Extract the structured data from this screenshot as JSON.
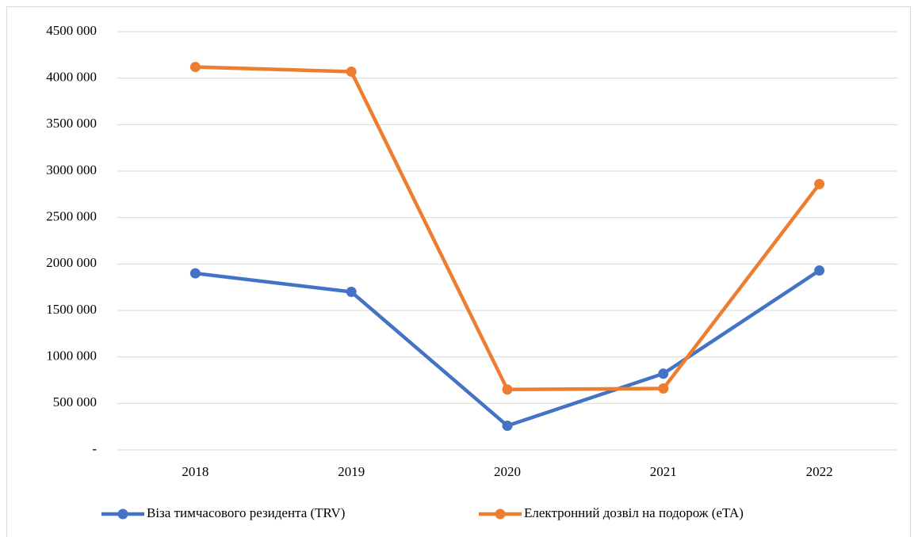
{
  "chart_data": {
    "type": "line",
    "categories": [
      "2018",
      "2019",
      "2020",
      "2021",
      "2022"
    ],
    "series": [
      {
        "name": "Віза тимчасового резидента (TRV)",
        "color": "#4472c4",
        "values": [
          1900000,
          1700000,
          260000,
          820000,
          1930000
        ]
      },
      {
        "name": "Електронний дозвіл на подорож (eTA)",
        "color": "#ed7d31",
        "values": [
          4120000,
          4070000,
          650000,
          660000,
          2860000
        ]
      }
    ],
    "ylim": [
      0,
      4500000
    ],
    "yticks": [
      {
        "value": 0,
        "label": "-"
      },
      {
        "value": 500000,
        "label": "500 000"
      },
      {
        "value": 1000000,
        "label": "1000 000"
      },
      {
        "value": 1500000,
        "label": "1500 000"
      },
      {
        "value": 2000000,
        "label": "2000 000"
      },
      {
        "value": 2500000,
        "label": "2500 000"
      },
      {
        "value": 3000000,
        "label": "3000 000"
      },
      {
        "value": 3500000,
        "label": "3500 000"
      },
      {
        "value": 4000000,
        "label": "4000 000"
      },
      {
        "value": 4500000,
        "label": "4500 000"
      }
    ],
    "grid": true,
    "legend": "bottom"
  }
}
